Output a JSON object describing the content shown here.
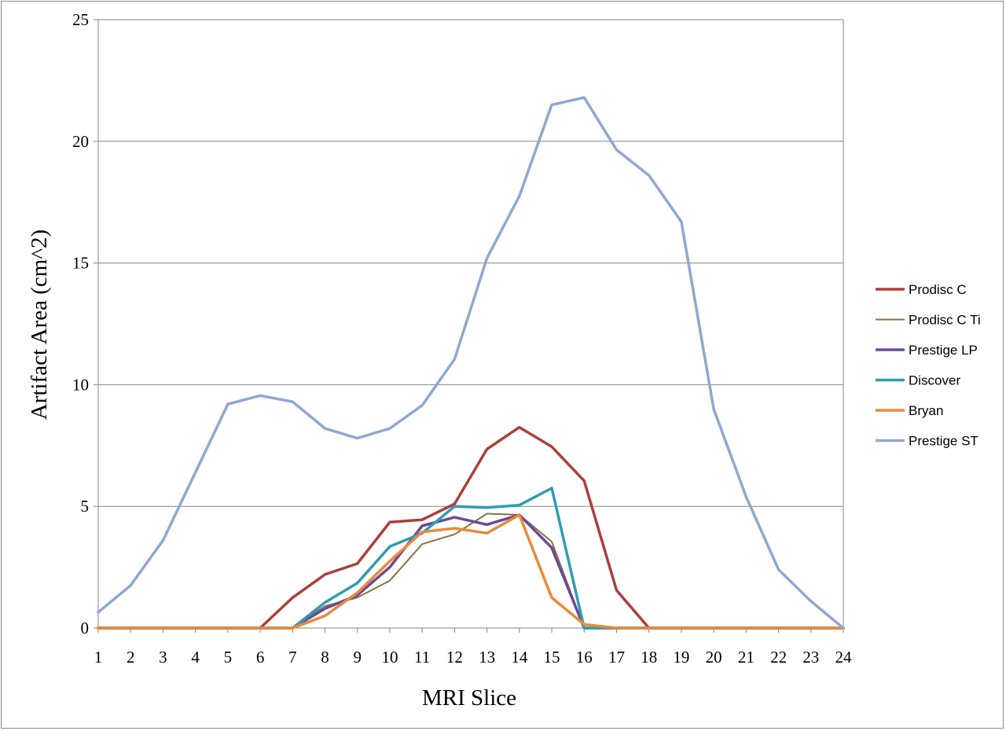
{
  "chart_data": {
    "type": "line",
    "xlabel": "MRI Slice",
    "ylabel": "Artifact Area (cm^2)",
    "x": [
      1,
      2,
      3,
      4,
      5,
      6,
      7,
      8,
      9,
      10,
      11,
      12,
      13,
      14,
      15,
      16,
      17,
      18,
      19,
      20,
      21,
      22,
      23,
      24
    ],
    "xlim": [
      1,
      24
    ],
    "ylim": [
      0,
      25
    ],
    "yticks": [
      0,
      5,
      10,
      15,
      20,
      25
    ],
    "grid": "horizontal major gridlines",
    "legend": "right",
    "series": [
      {
        "name": "Prodisc C",
        "color": "#a9403d",
        "values": [
          0,
          0,
          0,
          0,
          0,
          0,
          1.25,
          2.2,
          2.65,
          4.35,
          4.45,
          5.1,
          7.35,
          8.25,
          7.45,
          6.05,
          1.55,
          0,
          0,
          0,
          0,
          0,
          0,
          0
        ]
      },
      {
        "name": "Prodisc C Ti",
        "color": "#8b7340",
        "values": [
          0,
          0,
          0,
          0,
          0,
          0,
          0,
          0.9,
          1.25,
          1.95,
          3.45,
          3.85,
          4.7,
          4.65,
          3.55,
          0,
          0,
          0,
          0,
          0,
          0,
          0,
          0,
          0
        ]
      },
      {
        "name": "Prestige LP",
        "color": "#6c4a96",
        "values": [
          0,
          0,
          0,
          0,
          0,
          0,
          0,
          0.8,
          1.35,
          2.5,
          4.2,
          4.55,
          4.25,
          4.65,
          3.3,
          0,
          0,
          0,
          0,
          0,
          0,
          0,
          0,
          0
        ]
      },
      {
        "name": "Discover",
        "color": "#2f9db0",
        "values": [
          0,
          0,
          0,
          0,
          0,
          0,
          0,
          1.05,
          1.85,
          3.35,
          3.9,
          5.0,
          4.95,
          5.05,
          5.75,
          0,
          0,
          0,
          0,
          0,
          0,
          0,
          0,
          0
        ]
      },
      {
        "name": "Bryan",
        "color": "#ea8a3a",
        "values": [
          0,
          0,
          0,
          0,
          0,
          0,
          0,
          0.5,
          1.45,
          2.75,
          3.95,
          4.1,
          3.9,
          4.65,
          1.25,
          0.15,
          0,
          0,
          0,
          0,
          0,
          0,
          0,
          0
        ]
      },
      {
        "name": "Prestige ST",
        "color": "#8ea8d0",
        "values": [
          0.65,
          1.75,
          3.6,
          6.4,
          9.2,
          9.55,
          9.3,
          8.2,
          7.8,
          8.2,
          9.15,
          11.05,
          15.2,
          17.75,
          21.5,
          21.8,
          19.65,
          18.6,
          16.7,
          9.0,
          5.4,
          2.4,
          1.1,
          0
        ]
      }
    ]
  }
}
